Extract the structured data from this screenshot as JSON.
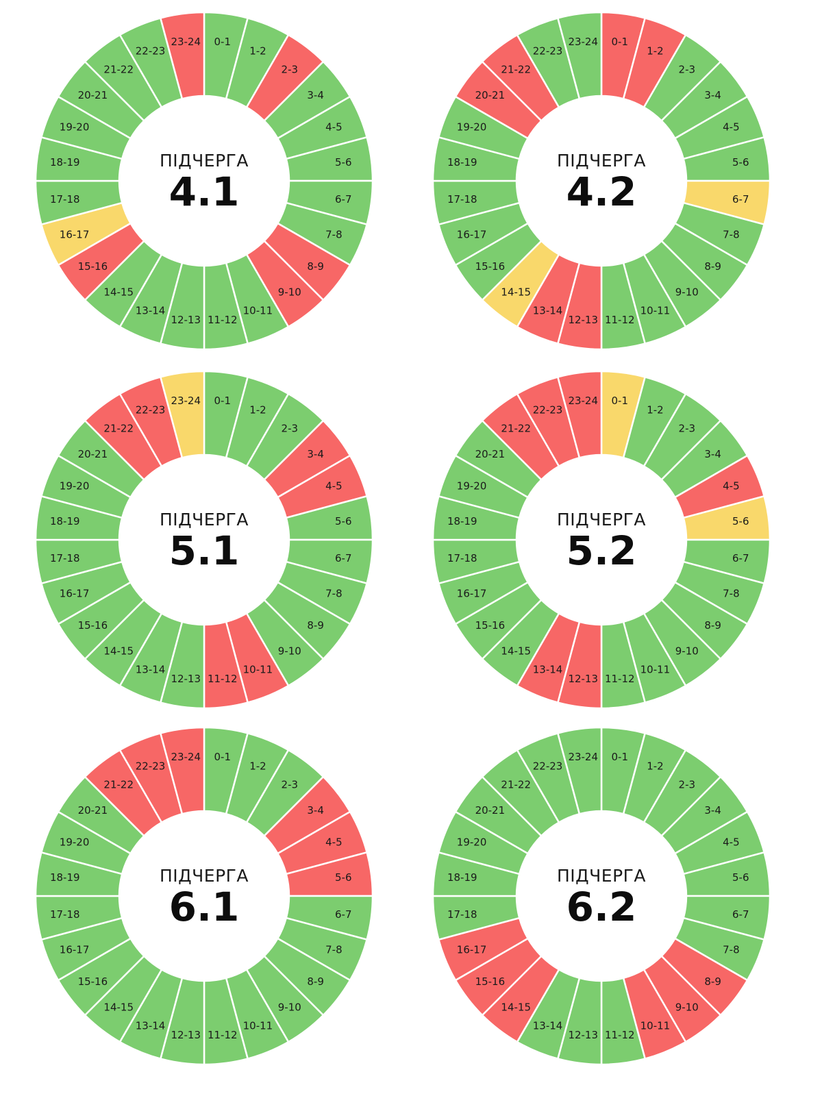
{
  "palette": {
    "on": "#7ccd6f",
    "off": "#f76766",
    "maybe": "#f9d86b"
  },
  "chart_data": [
    {
      "type": "pie",
      "caption": "ПІДЧЕРГА",
      "title": "4.1",
      "labels": [
        "0-1",
        "1-2",
        "2-3",
        "3-4",
        "4-5",
        "5-6",
        "6-7",
        "7-8",
        "8-9",
        "9-10",
        "10-11",
        "11-12",
        "12-13",
        "13-14",
        "14-15",
        "15-16",
        "16-17",
        "17-18",
        "18-19",
        "19-20",
        "20-21",
        "21-22",
        "22-23",
        "23-24"
      ],
      "status": [
        "on",
        "on",
        "off",
        "on",
        "on",
        "on",
        "on",
        "on",
        "off",
        "off",
        "on",
        "on",
        "on",
        "on",
        "on",
        "off",
        "maybe",
        "on",
        "on",
        "on",
        "on",
        "on",
        "on",
        "off"
      ]
    },
    {
      "type": "pie",
      "caption": "ПІДЧЕРГА",
      "title": "4.2",
      "labels": [
        "0-1",
        "1-2",
        "2-3",
        "3-4",
        "4-5",
        "5-6",
        "6-7",
        "7-8",
        "8-9",
        "9-10",
        "10-11",
        "11-12",
        "12-13",
        "13-14",
        "14-15",
        "15-16",
        "16-17",
        "17-18",
        "18-19",
        "19-20",
        "20-21",
        "21-22",
        "22-23",
        "23-24"
      ],
      "status": [
        "off",
        "off",
        "on",
        "on",
        "on",
        "on",
        "maybe",
        "on",
        "on",
        "on",
        "on",
        "on",
        "off",
        "off",
        "maybe",
        "on",
        "on",
        "on",
        "on",
        "on",
        "off",
        "off",
        "on",
        "on"
      ]
    },
    {
      "type": "pie",
      "caption": "ПІДЧЕРГА",
      "title": "5.1",
      "labels": [
        "0-1",
        "1-2",
        "2-3",
        "3-4",
        "4-5",
        "5-6",
        "6-7",
        "7-8",
        "8-9",
        "9-10",
        "10-11",
        "11-12",
        "12-13",
        "13-14",
        "14-15",
        "15-16",
        "16-17",
        "17-18",
        "18-19",
        "19-20",
        "20-21",
        "21-22",
        "22-23",
        "23-24"
      ],
      "status": [
        "on",
        "on",
        "on",
        "off",
        "off",
        "on",
        "on",
        "on",
        "on",
        "on",
        "off",
        "off",
        "on",
        "on",
        "on",
        "on",
        "on",
        "on",
        "on",
        "on",
        "on",
        "off",
        "off",
        "maybe"
      ]
    },
    {
      "type": "pie",
      "caption": "ПІДЧЕРГА",
      "title": "5.2",
      "labels": [
        "0-1",
        "1-2",
        "2-3",
        "3-4",
        "4-5",
        "5-6",
        "6-7",
        "7-8",
        "8-9",
        "9-10",
        "10-11",
        "11-12",
        "12-13",
        "13-14",
        "14-15",
        "15-16",
        "16-17",
        "17-18",
        "18-19",
        "19-20",
        "20-21",
        "21-22",
        "22-23",
        "23-24"
      ],
      "status": [
        "maybe",
        "on",
        "on",
        "on",
        "off",
        "maybe",
        "on",
        "on",
        "on",
        "on",
        "on",
        "on",
        "off",
        "off",
        "on",
        "on",
        "on",
        "on",
        "on",
        "on",
        "on",
        "off",
        "off",
        "off"
      ]
    },
    {
      "type": "pie",
      "caption": "ПІДЧЕРГА",
      "title": "6.1",
      "labels": [
        "0-1",
        "1-2",
        "2-3",
        "3-4",
        "4-5",
        "5-6",
        "6-7",
        "7-8",
        "8-9",
        "9-10",
        "10-11",
        "11-12",
        "12-13",
        "13-14",
        "14-15",
        "15-16",
        "16-17",
        "17-18",
        "18-19",
        "19-20",
        "20-21",
        "21-22",
        "22-23",
        "23-24"
      ],
      "status": [
        "on",
        "on",
        "on",
        "off",
        "off",
        "off",
        "on",
        "on",
        "on",
        "on",
        "on",
        "on",
        "on",
        "on",
        "on",
        "on",
        "on",
        "on",
        "on",
        "on",
        "on",
        "off",
        "off",
        "off"
      ]
    },
    {
      "type": "pie",
      "caption": "ПІДЧЕРГА",
      "title": "6.2",
      "labels": [
        "0-1",
        "1-2",
        "2-3",
        "3-4",
        "4-5",
        "5-6",
        "6-7",
        "7-8",
        "8-9",
        "9-10",
        "10-11",
        "11-12",
        "12-13",
        "13-14",
        "14-15",
        "15-16",
        "16-17",
        "17-18",
        "18-19",
        "19-20",
        "20-21",
        "21-22",
        "22-23",
        "23-24"
      ],
      "status": [
        "on",
        "on",
        "on",
        "on",
        "on",
        "on",
        "on",
        "on",
        "off",
        "off",
        "off",
        "on",
        "on",
        "on",
        "off",
        "off",
        "off",
        "on",
        "on",
        "on",
        "on",
        "on",
        "on",
        "on"
      ]
    }
  ]
}
